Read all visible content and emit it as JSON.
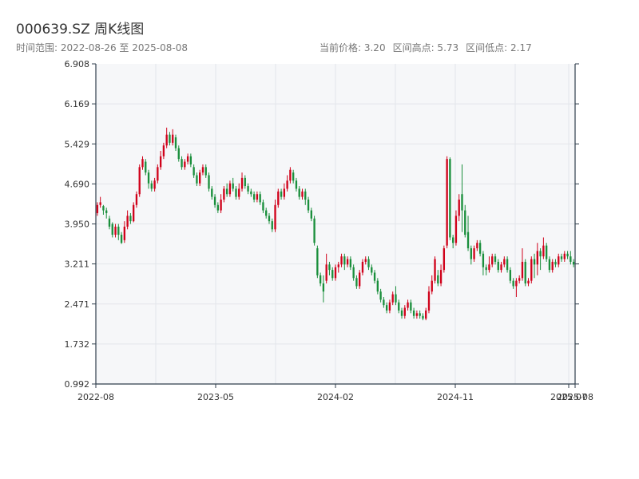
{
  "header": {
    "title": "000639.SZ 周K线图",
    "range_text": "时间范围: 2022-08-26 至 2025-08-08",
    "current_price_text": "当前价格: 3.20",
    "high_text": "区间高点: 5.73",
    "low_text": "区间低点: 2.17"
  },
  "colors": {
    "up": "#d0021b",
    "down": "#1a8f3c",
    "axis": "#2f3e4c",
    "grid": "#e3e6ea",
    "plot_bg": "#f6f7f9"
  },
  "chart_data": {
    "type": "candlestick",
    "title": "000639.SZ 周K线图",
    "xlabel": "",
    "ylabel": "",
    "y_ticks": [
      "6.908",
      "6.169",
      "5.429",
      "4.690",
      "3.950",
      "3.211",
      "2.471",
      "1.732",
      "0.992"
    ],
    "x_ticks": [
      "2022-08",
      "2023-05",
      "2024-02",
      "2024-11",
      "2025-07",
      "2025-08"
    ],
    "ylim": [
      0.992,
      6.908
    ],
    "grid": true,
    "date_range": [
      "2022-08-26",
      "2025-08-08"
    ],
    "summary": {
      "current": 3.2,
      "high": 5.73,
      "low": 2.17
    },
    "candles": [
      [
        4.15,
        4.3,
        4.1,
        4.35
      ],
      [
        4.3,
        4.35,
        4.25,
        4.45
      ],
      [
        4.28,
        4.2,
        4.12,
        4.3
      ],
      [
        4.2,
        4.15,
        4.05,
        4.25
      ],
      [
        4.05,
        3.9,
        3.85,
        4.1
      ],
      [
        3.95,
        3.75,
        3.7,
        3.98
      ],
      [
        3.75,
        3.9,
        3.7,
        3.95
      ],
      [
        3.9,
        3.75,
        3.65,
        3.95
      ],
      [
        3.75,
        3.6,
        3.58,
        3.8
      ],
      [
        3.65,
        3.9,
        3.6,
        4.0
      ],
      [
        3.9,
        4.1,
        3.85,
        4.2
      ],
      [
        4.1,
        4.0,
        3.95,
        4.15
      ],
      [
        4.0,
        4.3,
        3.98,
        4.35
      ],
      [
        4.3,
        4.5,
        4.25,
        4.55
      ],
      [
        4.5,
        5.0,
        4.45,
        5.05
      ],
      [
        5.0,
        5.15,
        4.95,
        5.2
      ],
      [
        5.1,
        4.9,
        4.85,
        5.15
      ],
      [
        4.9,
        4.7,
        4.6,
        4.95
      ],
      [
        4.7,
        4.6,
        4.55,
        4.75
      ],
      [
        4.6,
        4.75,
        4.55,
        4.8
      ],
      [
        4.75,
        5.0,
        4.7,
        5.05
      ],
      [
        5.0,
        5.2,
        4.95,
        5.3
      ],
      [
        5.2,
        5.4,
        5.15,
        5.45
      ],
      [
        5.4,
        5.6,
        5.35,
        5.73
      ],
      [
        5.6,
        5.45,
        5.4,
        5.65
      ],
      [
        5.45,
        5.6,
        5.4,
        5.7
      ],
      [
        5.55,
        5.35,
        5.3,
        5.6
      ],
      [
        5.35,
        5.15,
        5.1,
        5.4
      ],
      [
        5.15,
        5.0,
        4.95,
        5.2
      ],
      [
        5.0,
        5.1,
        4.95,
        5.15
      ],
      [
        5.1,
        5.2,
        5.05,
        5.25
      ],
      [
        5.2,
        5.05,
        5.0,
        5.25
      ],
      [
        5.0,
        4.85,
        4.8,
        5.05
      ],
      [
        4.85,
        4.7,
        4.65,
        4.9
      ],
      [
        4.7,
        4.9,
        4.65,
        4.95
      ],
      [
        4.9,
        5.0,
        4.85,
        5.05
      ],
      [
        5.0,
        4.85,
        4.8,
        5.05
      ],
      [
        4.85,
        4.6,
        4.55,
        4.9
      ],
      [
        4.6,
        4.45,
        4.4,
        4.65
      ],
      [
        4.45,
        4.3,
        4.25,
        4.5
      ],
      [
        4.3,
        4.2,
        4.15,
        4.35
      ],
      [
        4.2,
        4.4,
        4.15,
        4.5
      ],
      [
        4.4,
        4.6,
        4.35,
        4.65
      ],
      [
        4.6,
        4.5,
        4.45,
        4.7
      ],
      [
        4.5,
        4.7,
        4.45,
        4.75
      ],
      [
        4.7,
        4.6,
        4.55,
        4.8
      ],
      [
        4.6,
        4.45,
        4.4,
        4.65
      ],
      [
        4.45,
        4.6,
        4.4,
        4.7
      ],
      [
        4.6,
        4.8,
        4.55,
        4.9
      ],
      [
        4.8,
        4.65,
        4.6,
        4.85
      ],
      [
        4.65,
        4.55,
        4.5,
        4.7
      ],
      [
        4.55,
        4.5,
        4.45,
        4.6
      ],
      [
        4.5,
        4.4,
        4.35,
        4.55
      ],
      [
        4.4,
        4.5,
        4.35,
        4.55
      ],
      [
        4.5,
        4.35,
        4.3,
        4.55
      ],
      [
        4.35,
        4.2,
        4.15,
        4.4
      ],
      [
        4.2,
        4.1,
        4.05,
        4.25
      ],
      [
        4.1,
        4.0,
        3.95,
        4.15
      ],
      [
        4.0,
        3.85,
        3.8,
        4.05
      ],
      [
        3.85,
        4.3,
        3.8,
        4.4
      ],
      [
        4.3,
        4.55,
        4.25,
        4.6
      ],
      [
        4.55,
        4.45,
        4.4,
        4.6
      ],
      [
        4.45,
        4.6,
        4.4,
        4.7
      ],
      [
        4.6,
        4.75,
        4.55,
        4.85
      ],
      [
        4.75,
        4.95,
        4.7,
        5.0
      ],
      [
        4.9,
        4.75,
        4.7,
        4.95
      ],
      [
        4.75,
        4.6,
        4.55,
        4.8
      ],
      [
        4.6,
        4.45,
        4.4,
        4.65
      ],
      [
        4.45,
        4.55,
        4.4,
        4.6
      ],
      [
        4.55,
        4.4,
        4.3,
        4.6
      ],
      [
        4.4,
        4.2,
        4.15,
        4.45
      ],
      [
        4.2,
        4.05,
        4.0,
        4.25
      ],
      [
        4.05,
        3.6,
        3.55,
        4.1
      ],
      [
        3.5,
        3.0,
        2.95,
        3.55
      ],
      [
        3.0,
        2.85,
        2.8,
        3.05
      ],
      [
        2.85,
        2.7,
        2.5,
        3.0
      ],
      [
        2.9,
        3.2,
        2.85,
        3.4
      ],
      [
        3.2,
        3.1,
        3.0,
        3.25
      ],
      [
        3.1,
        2.95,
        2.9,
        3.15
      ],
      [
        2.95,
        3.15,
        2.9,
        3.2
      ],
      [
        3.15,
        3.2,
        3.05,
        3.25
      ],
      [
        3.2,
        3.35,
        3.15,
        3.4
      ],
      [
        3.35,
        3.2,
        3.1,
        3.4
      ],
      [
        3.2,
        3.3,
        3.15,
        3.35
      ],
      [
        3.3,
        3.15,
        3.1,
        3.35
      ],
      [
        3.15,
        2.95,
        2.9,
        3.2
      ],
      [
        2.95,
        2.8,
        2.75,
        3.0
      ],
      [
        2.8,
        3.05,
        2.75,
        3.1
      ],
      [
        3.05,
        3.25,
        3.0,
        3.3
      ],
      [
        3.25,
        3.3,
        3.2,
        3.35
      ],
      [
        3.3,
        3.15,
        3.1,
        3.35
      ],
      [
        3.15,
        3.05,
        3.0,
        3.2
      ],
      [
        3.05,
        2.9,
        2.85,
        3.1
      ],
      [
        2.9,
        2.7,
        2.65,
        2.95
      ],
      [
        2.7,
        2.55,
        2.5,
        2.75
      ],
      [
        2.55,
        2.45,
        2.4,
        2.6
      ],
      [
        2.45,
        2.35,
        2.3,
        2.5
      ],
      [
        2.35,
        2.5,
        2.3,
        2.55
      ],
      [
        2.5,
        2.65,
        2.45,
        2.7
      ],
      [
        2.65,
        2.5,
        2.45,
        2.8
      ],
      [
        2.5,
        2.35,
        2.3,
        2.55
      ],
      [
        2.35,
        2.25,
        2.2,
        2.4
      ],
      [
        2.25,
        2.4,
        2.2,
        2.45
      ],
      [
        2.4,
        2.5,
        2.35,
        2.55
      ],
      [
        2.5,
        2.35,
        2.3,
        2.55
      ],
      [
        2.35,
        2.25,
        2.2,
        2.4
      ],
      [
        2.25,
        2.3,
        2.2,
        2.35
      ],
      [
        2.3,
        2.25,
        2.2,
        2.35
      ],
      [
        2.25,
        2.2,
        2.17,
        2.3
      ],
      [
        2.2,
        2.35,
        2.17,
        2.4
      ],
      [
        2.35,
        2.7,
        2.3,
        2.8
      ],
      [
        2.7,
        2.9,
        2.65,
        3.0
      ],
      [
        2.9,
        3.3,
        2.85,
        3.35
      ],
      [
        3.0,
        2.85,
        2.8,
        3.1
      ],
      [
        2.85,
        3.1,
        2.8,
        3.2
      ],
      [
        3.1,
        3.5,
        3.05,
        3.55
      ],
      [
        3.55,
        5.15,
        3.5,
        5.2
      ],
      [
        5.15,
        3.7,
        3.65,
        5.18
      ],
      [
        3.7,
        3.6,
        3.5,
        3.75
      ],
      [
        3.6,
        4.1,
        3.55,
        4.2
      ],
      [
        4.1,
        4.4,
        4.0,
        4.5
      ],
      [
        4.5,
        4.2,
        3.8,
        5.05
      ],
      [
        4.2,
        3.75,
        3.7,
        4.3
      ],
      [
        3.8,
        3.5,
        3.45,
        4.1
      ],
      [
        3.5,
        3.3,
        3.2,
        3.55
      ],
      [
        3.3,
        3.5,
        3.25,
        3.55
      ],
      [
        3.5,
        3.6,
        3.45,
        3.65
      ],
      [
        3.6,
        3.4,
        3.35,
        3.65
      ],
      [
        3.4,
        3.15,
        3.0,
        3.45
      ],
      [
        3.15,
        3.1,
        3.0,
        3.2
      ],
      [
        3.1,
        3.2,
        3.05,
        3.35
      ],
      [
        3.2,
        3.35,
        3.15,
        3.4
      ],
      [
        3.35,
        3.25,
        3.2,
        3.4
      ],
      [
        3.25,
        3.1,
        3.05,
        3.3
      ],
      [
        3.1,
        3.2,
        3.05,
        3.25
      ],
      [
        3.2,
        3.3,
        3.15,
        3.35
      ],
      [
        3.3,
        3.1,
        3.05,
        3.35
      ],
      [
        3.1,
        2.9,
        2.85,
        3.15
      ],
      [
        2.9,
        2.8,
        2.75,
        2.95
      ],
      [
        2.8,
        2.9,
        2.6,
        2.95
      ],
      [
        2.9,
        2.95,
        2.85,
        3.0
      ],
      [
        2.95,
        3.25,
        2.9,
        3.5
      ],
      [
        3.25,
        2.85,
        2.8,
        3.3
      ],
      [
        2.85,
        2.9,
        2.8,
        2.95
      ],
      [
        2.9,
        3.3,
        2.85,
        3.35
      ],
      [
        3.3,
        3.2,
        2.95,
        3.4
      ],
      [
        3.2,
        3.45,
        3.0,
        3.6
      ],
      [
        3.45,
        3.35,
        3.1,
        3.5
      ],
      [
        3.35,
        3.55,
        3.3,
        3.7
      ],
      [
        3.55,
        3.3,
        3.25,
        3.6
      ],
      [
        3.3,
        3.1,
        3.05,
        3.35
      ],
      [
        3.1,
        3.25,
        3.05,
        3.3
      ],
      [
        3.25,
        3.2,
        3.15,
        3.3
      ],
      [
        3.2,
        3.35,
        3.15,
        3.4
      ],
      [
        3.35,
        3.3,
        3.25,
        3.4
      ],
      [
        3.3,
        3.4,
        3.25,
        3.45
      ],
      [
        3.4,
        3.35,
        3.3,
        3.45
      ],
      [
        3.35,
        3.25,
        3.2,
        3.45
      ],
      [
        3.25,
        3.2,
        3.15,
        3.3
      ]
    ]
  }
}
